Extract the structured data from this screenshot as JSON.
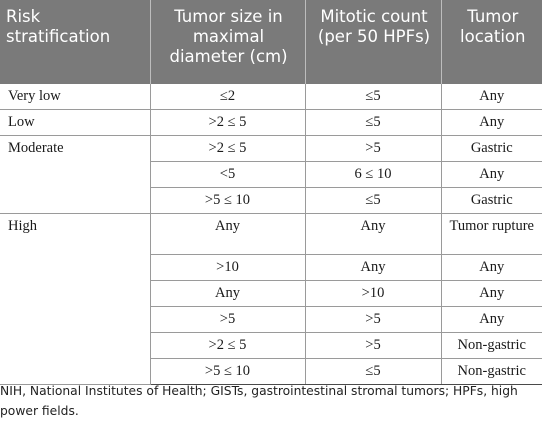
{
  "table": {
    "headers": [
      "Risk stratification",
      "Tumor size in maximal diameter (cm)",
      "Mitotic count (per 50 HPFs)",
      "Tumor location"
    ],
    "rows": [
      {
        "stratification": "Very low",
        "size": "≤2",
        "mitotic": "≤5",
        "location": "Any"
      },
      {
        "stratification": "Low",
        "size": ">2 ≤ 5",
        "mitotic": "≤5",
        "location": "Any"
      },
      {
        "stratification": "Moderate",
        "size": ">2 ≤ 5",
        "mitotic": ">5",
        "location": "Gastric"
      },
      {
        "stratification": "",
        "size": "<5",
        "mitotic": "6 ≤ 10",
        "location": "Any"
      },
      {
        "stratification": "",
        "size": ">5 ≤ 10",
        "mitotic": "≤5",
        "location": "Gastric"
      },
      {
        "stratification": "High",
        "size": "Any",
        "mitotic": "Any",
        "location": "Tumor rupture"
      },
      {
        "stratification": "",
        "size": ">10",
        "mitotic": "Any",
        "location": "Any"
      },
      {
        "stratification": "",
        "size": "Any",
        "mitotic": ">10",
        "location": "Any"
      },
      {
        "stratification": "",
        "size": ">5",
        "mitotic": ">5",
        "location": "Any"
      },
      {
        "stratification": "",
        "size": ">2 ≤ 5",
        "mitotic": ">5",
        "location": "Non-gastric"
      },
      {
        "stratification": "",
        "size": ">5 ≤ 10",
        "mitotic": "≤5",
        "location": "Non-gastric"
      }
    ]
  },
  "footnote": "NIH, National Institutes of Health; GISTs, gastrointestinal stromal tumors; HPFs, high power fields."
}
